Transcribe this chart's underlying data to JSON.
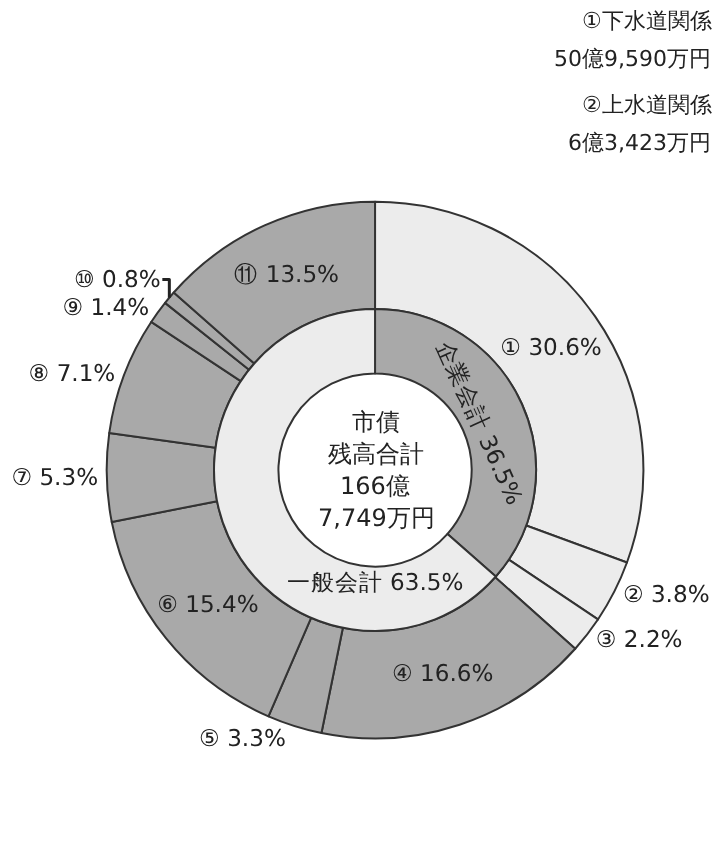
{
  "chart_data": {
    "type": "donut",
    "legend": false,
    "categories": [
      "①",
      "②",
      "③",
      "④",
      "⑤",
      "⑥",
      "⑦",
      "⑧",
      "⑨",
      "⑩",
      "⑪",
      "企業会計",
      "一般会計"
    ],
    "series": [
      {
        "values": [
          30.6,
          3.8,
          2.2,
          16.6,
          3.3,
          15.4,
          5.3,
          7.1,
          1.4,
          0.8,
          13.5,
          null,
          null
        ],
        "value_labels": [
          "30.6%",
          "3.8%",
          "2.2%",
          "16.6%",
          "3.3%",
          "15.4%",
          "5.3%",
          "7.1%",
          "1.4%",
          "0.8%",
          "13.5%",
          null,
          null
        ],
        "colors": [
          "#ececec",
          "#ececec",
          "#ececec",
          "#a9a9a9",
          "#a9a9a9",
          "#a9a9a9",
          "#a9a9a9",
          "#a9a9a9",
          "#a9a9a9",
          "#a9a9a9",
          "#a9a9a9",
          null,
          null
        ]
      },
      {
        "values": [
          null,
          null,
          null,
          null,
          null,
          null,
          null,
          null,
          null,
          null,
          null,
          36.5,
          63.5
        ],
        "value_labels": [
          null,
          null,
          null,
          null,
          null,
          null,
          null,
          null,
          null,
          null,
          null,
          "36.5%",
          "63.5%"
        ],
        "colors": [
          null,
          null,
          null,
          null,
          null,
          null,
          null,
          null,
          null,
          null,
          null,
          "#a9a9a9",
          "#ececec"
        ]
      }
    ],
    "annotations": [
      "①下水道関係",
      "50億9,590万円",
      "②上水道関係",
      "6億3,423万円",
      "市債",
      "残高合計",
      "166億",
      "7,749万円"
    ]
  }
}
